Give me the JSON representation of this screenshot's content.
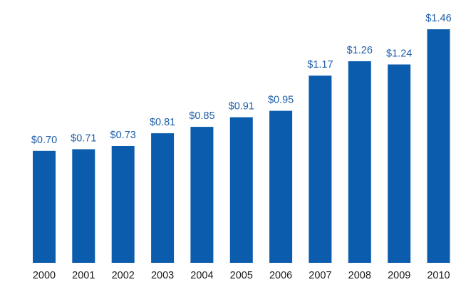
{
  "chart_data": {
    "type": "bar",
    "categories": [
      "2000",
      "2001",
      "2002",
      "2003",
      "2004",
      "2005",
      "2006",
      "2007",
      "2008",
      "2009",
      "2010"
    ],
    "values": [
      0.7,
      0.71,
      0.73,
      0.81,
      0.85,
      0.91,
      0.95,
      1.17,
      1.26,
      1.24,
      1.46
    ],
    "value_labels": [
      "$0.70",
      "$0.71",
      "$0.73",
      "$0.81",
      "$0.85",
      "$0.91",
      "$0.95",
      "$1.17",
      "$1.26",
      "$1.24",
      "$1.46"
    ],
    "title": "",
    "xlabel": "",
    "ylabel": "",
    "ylim": [
      0,
      1.5
    ],
    "grid": false,
    "legend": "none",
    "colors": {
      "bar": "#0b5cad",
      "value_label": "#1f5fa8",
      "tick_label": "#1a1a1a"
    }
  }
}
